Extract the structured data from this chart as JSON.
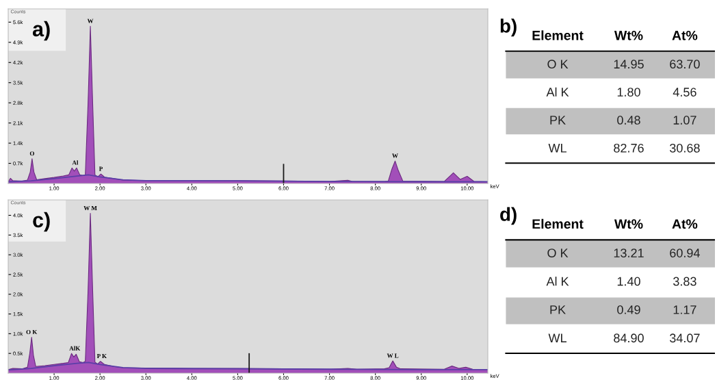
{
  "chart_data": [
    {
      "type": "area",
      "title": "a)",
      "ylabel": "Counts",
      "xlabel": "keV",
      "xlim": [
        0,
        10.45
      ],
      "ylim": [
        0,
        6060
      ],
      "xticks": [
        {
          "value": 1,
          "label": "1.00"
        },
        {
          "value": 2,
          "label": "2.00"
        },
        {
          "value": 3,
          "label": "3.00"
        },
        {
          "value": 4,
          "label": "4.00"
        },
        {
          "value": 5,
          "label": "5.00"
        },
        {
          "value": 6,
          "label": "6.00"
        },
        {
          "value": 7,
          "label": "7.00"
        },
        {
          "value": 8,
          "label": "8.00"
        },
        {
          "value": 9,
          "label": "9.00"
        },
        {
          "value": 10,
          "label": "10.00"
        }
      ],
      "yticks": [
        {
          "value": 700,
          "label": "0.7k"
        },
        {
          "value": 1400,
          "label": "1.4k"
        },
        {
          "value": 2100,
          "label": "2.1k"
        },
        {
          "value": 2800,
          "label": "2.8k"
        },
        {
          "value": 3500,
          "label": "3.5k"
        },
        {
          "value": 4200,
          "label": "4.2k"
        },
        {
          "value": 4900,
          "label": "4.9k"
        },
        {
          "value": 5600,
          "label": "5.6k"
        }
      ],
      "grid": false,
      "series": [
        {
          "type": "area",
          "color": "#9b3fb5",
          "x": [
            0,
            0.05,
            0.1,
            0.3,
            0.42,
            0.48,
            0.52,
            0.56,
            0.62,
            0.8,
            1.0,
            1.2,
            1.32,
            1.39,
            1.44,
            1.49,
            1.56,
            1.63,
            1.68,
            1.74,
            1.79,
            1.84,
            1.89,
            1.95,
            2.02,
            2.1,
            2.3,
            2.5,
            3.0,
            4.0,
            5.0,
            6.0,
            7.0,
            7.4,
            7.5,
            8.2,
            8.28,
            8.36,
            8.43,
            8.5,
            8.6,
            9.5,
            9.7,
            9.85,
            10.0,
            10.15,
            10.45
          ],
          "values": [
            60,
            180,
            100,
            80,
            120,
            400,
            860,
            400,
            130,
            170,
            210,
            260,
            300,
            540,
            430,
            540,
            300,
            280,
            300,
            2800,
            5460,
            2800,
            300,
            230,
            330,
            220,
            170,
            120,
            100,
            100,
            100,
            90,
            70,
            110,
            70,
            70,
            80,
            500,
            780,
            450,
            80,
            70,
            370,
            140,
            250,
            70,
            60
          ]
        },
        {
          "type": "line",
          "color": "#5b3fa8",
          "x": [
            0,
            0.5,
            1.0,
            1.5,
            1.75,
            2.0,
            2.5,
            3.0,
            5.0,
            7.0,
            9.0,
            10.45
          ],
          "values": [
            60,
            90,
            170,
            260,
            300,
            230,
            130,
            100,
            90,
            70,
            60,
            60
          ]
        },
        {
          "type": "line",
          "color": "#1a1a1a",
          "x": [
            6.0,
            6.0
          ],
          "values": [
            0,
            660
          ]
        }
      ],
      "annotations": [
        {
          "text": "W",
          "x": 1.79,
          "y": 5460
        },
        {
          "text": "O",
          "x": 0.52,
          "y": 860
        },
        {
          "text": "Al",
          "x": 1.46,
          "y": 540
        },
        {
          "text": "P",
          "x": 2.02,
          "y": 330
        },
        {
          "text": "W",
          "x": 8.43,
          "y": 780
        }
      ]
    },
    {
      "type": "other",
      "title": "b)",
      "ylabel": "Element",
      "categories": [
        "O K",
        "Al K",
        "PK",
        "WL"
      ],
      "series": [
        {
          "name": "Wt%",
          "values": [
            14.95,
            1.8,
            0.48,
            82.76
          ],
          "value_labels": [
            "14.95",
            "1.80",
            "0.48",
            "82.76"
          ]
        },
        {
          "name": "At%",
          "values": [
            63.7,
            4.56,
            1.07,
            30.68
          ],
          "value_labels": [
            "63.70",
            "4.56",
            "1.07",
            "30.68"
          ]
        }
      ]
    },
    {
      "type": "area",
      "title": "c)",
      "ylabel": "Counts",
      "xlabel": "keV",
      "xlim": [
        0,
        10.45
      ],
      "ylim": [
        0,
        4390
      ],
      "xticks": [
        {
          "value": 1,
          "label": "1.00"
        },
        {
          "value": 2,
          "label": "2.00"
        },
        {
          "value": 3,
          "label": "3.00"
        },
        {
          "value": 4,
          "label": "4.00"
        },
        {
          "value": 5,
          "label": "5.00"
        },
        {
          "value": 6,
          "label": "6.00"
        },
        {
          "value": 7,
          "label": "7.00"
        },
        {
          "value": 8,
          "label": "8.00"
        },
        {
          "value": 9,
          "label": "9.00"
        },
        {
          "value": 10,
          "label": "10.00"
        }
      ],
      "yticks": [
        {
          "value": 500,
          "label": "0.5k"
        },
        {
          "value": 1000,
          "label": "1.0k"
        },
        {
          "value": 1500,
          "label": "1.5k"
        },
        {
          "value": 2000,
          "label": "2.0k"
        },
        {
          "value": 2500,
          "label": "2.5k"
        },
        {
          "value": 3000,
          "label": "3.0k"
        },
        {
          "value": 3500,
          "label": "3.5k"
        },
        {
          "value": 4000,
          "label": "4.0k"
        }
      ],
      "grid": false,
      "series": [
        {
          "type": "area",
          "color": "#9b3fb5",
          "x": [
            0,
            0.1,
            0.3,
            0.42,
            0.47,
            0.51,
            0.55,
            0.6,
            0.8,
            1.0,
            1.2,
            1.31,
            1.38,
            1.43,
            1.48,
            1.55,
            1.63,
            1.68,
            1.74,
            1.79,
            1.84,
            1.89,
            1.95,
            2.01,
            2.1,
            2.3,
            2.5,
            3.0,
            4.0,
            5.0,
            6.0,
            7.0,
            7.4,
            7.6,
            8.2,
            8.3,
            8.38,
            8.46,
            8.55,
            9.5,
            9.67,
            9.82,
            9.97,
            10.12,
            10.45
          ],
          "values": [
            90,
            120,
            110,
            150,
            500,
            910,
            450,
            170,
            190,
            220,
            250,
            270,
            500,
            410,
            480,
            290,
            270,
            300,
            2100,
            4050,
            2100,
            280,
            230,
            300,
            220,
            170,
            140,
            130,
            120,
            120,
            110,
            100,
            120,
            100,
            110,
            140,
            310,
            150,
            110,
            100,
            180,
            120,
            150,
            100,
            90
          ]
        },
        {
          "type": "line",
          "color": "#5b3fa8",
          "x": [
            0,
            0.5,
            1.0,
            1.5,
            1.75,
            2.0,
            2.5,
            3.0,
            5.0,
            7.0,
            9.0,
            10.45
          ],
          "values": [
            80,
            120,
            190,
            250,
            270,
            220,
            140,
            120,
            110,
            100,
            90,
            90
          ]
        },
        {
          "type": "line",
          "color": "#1a1a1a",
          "x": [
            5.25,
            5.25
          ],
          "values": [
            0,
            490
          ]
        }
      ],
      "annotations": [
        {
          "text": "W M",
          "x": 1.79,
          "y": 4050
        },
        {
          "text": "O K",
          "x": 0.51,
          "y": 910
        },
        {
          "text": "AlK",
          "x": 1.45,
          "y": 495
        },
        {
          "text": "P K",
          "x": 2.04,
          "y": 300
        },
        {
          "text": "W L",
          "x": 8.38,
          "y": 310
        }
      ]
    },
    {
      "type": "other",
      "title": "d)",
      "ylabel": "Element",
      "categories": [
        "O K",
        "Al K",
        "PK",
        "WL"
      ],
      "series": [
        {
          "name": "Wt%",
          "values": [
            13.21,
            1.4,
            0.49,
            84.9
          ],
          "value_labels": [
            "13.21",
            "1.40",
            "0.49",
            "84.90"
          ]
        },
        {
          "name": "At%",
          "values": [
            60.94,
            3.83,
            1.17,
            34.07
          ],
          "value_labels": [
            "60.94",
            "3.83",
            "1.17",
            "34.07"
          ]
        }
      ]
    }
  ]
}
